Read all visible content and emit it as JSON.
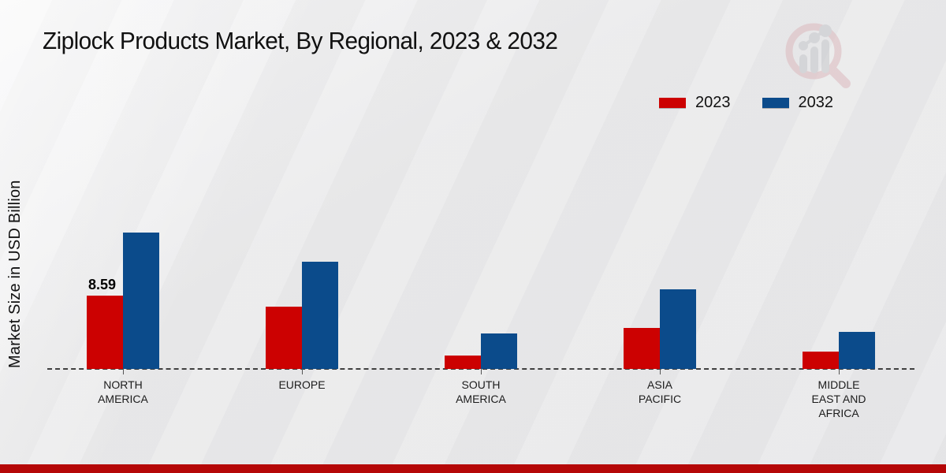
{
  "title": "Ziplock Products Market, By Regional, 2023 & 2032",
  "colors": {
    "series_2023": "#cc0101",
    "series_2032": "#0b4b8b",
    "footer_accent": "#b50707",
    "axis_dash": "#3f3f3f"
  },
  "watermark_icon": "magnifier-bar-chart-logo",
  "chart_data": {
    "type": "bar",
    "title": "Ziplock Products Market, By Regional, 2023 & 2032",
    "xlabel": "",
    "ylabel": "Market Size in USD Billion",
    "categories": [
      "NORTH AMERICA",
      "EUROPE",
      "SOUTH AMERICA",
      "ASIA PACIFIC",
      "MIDDLE EAST AND AFRICA"
    ],
    "series": [
      {
        "name": "2023",
        "color": "#cc0101",
        "values": [
          8.59,
          7.3,
          1.6,
          4.8,
          2.0
        ]
      },
      {
        "name": "2032",
        "color": "#0b4b8b",
        "values": [
          16.0,
          12.6,
          4.2,
          9.3,
          4.3
        ]
      }
    ],
    "bar_labels": [
      {
        "series_index": 0,
        "category_index": 0,
        "text": "8.59"
      }
    ],
    "ylim": [
      0,
      18
    ],
    "grid": false,
    "baseline_style": "dashed",
    "legend_position": "top-right"
  }
}
